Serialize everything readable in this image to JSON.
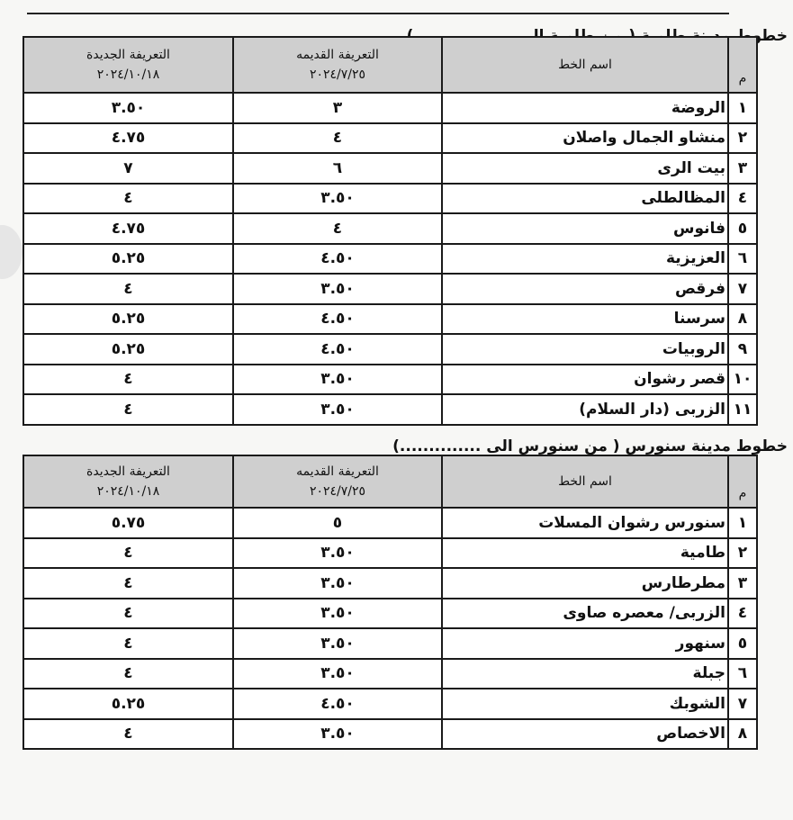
{
  "tables": [
    {
      "title": "خطوط مدينة طامية ( من طامية الى .................)",
      "headers": {
        "num": "م",
        "name": "اسم الخط",
        "old": "التعريفة القديمه",
        "old_date": "٢٠٢٤/٧/٢٥",
        "new": "التعريفة الجديدة",
        "new_date": "٢٠٢٤/١٠/١٨"
      },
      "rows": [
        {
          "num": "١",
          "name": "الروضة",
          "old": "٣",
          "new": "٣.٥٠"
        },
        {
          "num": "٢",
          "name": "منشاو الجمال واصلان",
          "old": "٤",
          "new": "٤.٧٥"
        },
        {
          "num": "٣",
          "name": "بيت الرى",
          "old": "٦",
          "new": "٧"
        },
        {
          "num": "٤",
          "name": "المظالطلى",
          "old": "٣.٥٠",
          "new": "٤"
        },
        {
          "num": "٥",
          "name": "فانوس",
          "old": "٤",
          "new": "٤.٧٥"
        },
        {
          "num": "٦",
          "name": "العزيزية",
          "old": "٤.٥٠",
          "new": "٥.٢٥"
        },
        {
          "num": "٧",
          "name": "فرقص",
          "old": "٣.٥٠",
          "new": "٤"
        },
        {
          "num": "٨",
          "name": "سرسنا",
          "old": "٤.٥٠",
          "new": "٥.٢٥"
        },
        {
          "num": "٩",
          "name": "الروبيات",
          "old": "٤.٥٠",
          "new": "٥.٢٥"
        },
        {
          "num": "١٠",
          "name": "قصر رشوان",
          "old": "٣.٥٠",
          "new": "٤"
        },
        {
          "num": "١١",
          "name": "الزربى (دار السلام)",
          "old": "٣.٥٠",
          "new": "٤"
        }
      ]
    },
    {
      "title": "خطوط مدينة سنورس ( من سنورس الى ..............)",
      "headers": {
        "num": "م",
        "name": "اسم الخط",
        "old": "التعريفة القديمه",
        "old_date": "٢٠٢٤/٧/٢٥",
        "new": "التعريفة الجديدة",
        "new_date": "٢٠٢٤/١٠/١٨"
      },
      "rows": [
        {
          "num": "١",
          "name": "سنورس رشوان المسلات",
          "old": "٥",
          "new": "٥.٧٥"
        },
        {
          "num": "٢",
          "name": "طامية",
          "old": "٣.٥٠",
          "new": "٤"
        },
        {
          "num": "٣",
          "name": "مطرطارس",
          "old": "٣.٥٠",
          "new": "٤"
        },
        {
          "num": "٤",
          "name": "الزربى/ معصره صاوى",
          "old": "٣.٥٠",
          "new": "٤"
        },
        {
          "num": "٥",
          "name": "سنهور",
          "old": "٣.٥٠",
          "new": "٤"
        },
        {
          "num": "٦",
          "name": "جبلة",
          "old": "٣.٥٠",
          "new": "٤"
        },
        {
          "num": "٧",
          "name": "الشوبك",
          "old": "٤.٥٠",
          "new": "٥.٢٥"
        },
        {
          "num": "٨",
          "name": "الاخصاص",
          "old": "٣.٥٠",
          "new": "٤"
        }
      ]
    }
  ]
}
